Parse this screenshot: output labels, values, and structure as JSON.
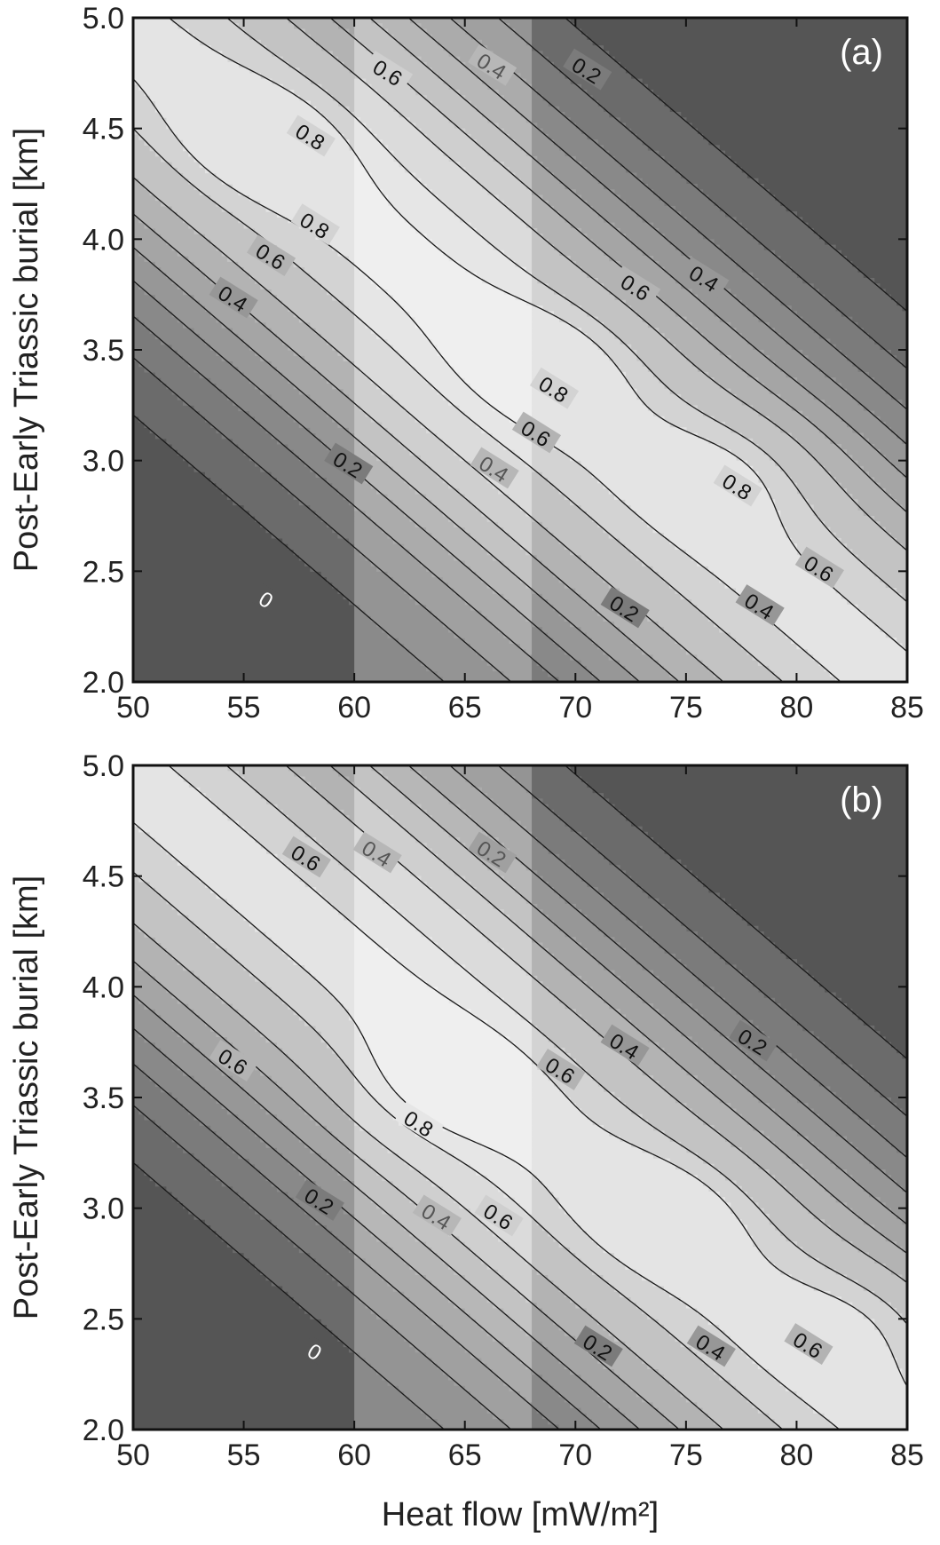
{
  "chart_data": [
    {
      "type": "contour",
      "panel_label": "(a)",
      "xlabel": "",
      "ylabel": "Post-Early Triassic burial [km]",
      "xlim": [
        50,
        85
      ],
      "ylim": [
        2.0,
        5.0
      ],
      "xticks": [
        "50",
        "55",
        "60",
        "65",
        "70",
        "75",
        "80",
        "85"
      ],
      "yticks": [
        "2.0",
        "2.5",
        "3.0",
        "3.5",
        "4.0",
        "4.5",
        "5.0"
      ],
      "highlight_band": [
        60,
        68
      ],
      "peaks": [
        {
          "x": 56,
          "y": 4.45,
          "value": 0.85
        },
        {
          "x": 69,
          "y": 3.45,
          "value": 0.88
        },
        {
          "x": 78,
          "y": 3.0,
          "value": 0.86
        }
      ],
      "contour_labels": [
        {
          "text": "0",
          "x": 56.0,
          "y": 2.37
        },
        {
          "text": "0.2",
          "x": 59.7,
          "y": 2.98
        },
        {
          "text": "0.2",
          "x": 72.2,
          "y": 2.33
        },
        {
          "text": "0.2",
          "x": 70.5,
          "y": 4.76
        },
        {
          "text": "0.4",
          "x": 54.5,
          "y": 3.73
        },
        {
          "text": "0.4",
          "x": 66.3,
          "y": 2.96
        },
        {
          "text": "0.4",
          "x": 78.3,
          "y": 2.34
        },
        {
          "text": "0.4",
          "x": 66.2,
          "y": 4.78
        },
        {
          "text": "0.4",
          "x": 75.8,
          "y": 3.82
        },
        {
          "text": "0.6",
          "x": 56.2,
          "y": 3.92
        },
        {
          "text": "0.6",
          "x": 68.2,
          "y": 3.12
        },
        {
          "text": "0.6",
          "x": 81.0,
          "y": 2.51
        },
        {
          "text": "0.6",
          "x": 61.5,
          "y": 4.75
        },
        {
          "text": "0.6",
          "x": 72.7,
          "y": 3.78
        },
        {
          "text": "0.8",
          "x": 58.2,
          "y": 4.06
        },
        {
          "text": "0.8",
          "x": 58.0,
          "y": 4.46
        },
        {
          "text": "0.8",
          "x": 69.0,
          "y": 3.32
        },
        {
          "text": "0.8",
          "x": 77.3,
          "y": 2.88
        }
      ]
    },
    {
      "type": "contour",
      "panel_label": "(b)",
      "xlabel": "Heat flow [mW/m²]",
      "ylabel": "Post-Early Triassic burial [km]",
      "xlim": [
        50,
        85
      ],
      "ylim": [
        2.0,
        5.0
      ],
      "xticks": [
        "50",
        "55",
        "60",
        "65",
        "70",
        "75",
        "80",
        "85"
      ],
      "yticks": [
        "2.0",
        "2.5",
        "3.0",
        "3.5",
        "4.0",
        "4.5",
        "5.0"
      ],
      "highlight_band": [
        60,
        68
      ],
      "peaks": [
        {
          "x": 63.5,
          "y": 3.52,
          "value": 0.88
        },
        {
          "x": 74.5,
          "y": 3.0,
          "value": 0.86
        },
        {
          "x": 84.0,
          "y": 2.55,
          "value": 0.85
        }
      ],
      "contour_labels": [
        {
          "text": "0",
          "x": 58.2,
          "y": 2.35
        },
        {
          "text": "0.2",
          "x": 58.4,
          "y": 3.03
        },
        {
          "text": "0.2",
          "x": 71.0,
          "y": 2.37
        },
        {
          "text": "0.2",
          "x": 66.2,
          "y": 4.6
        },
        {
          "text": "0.2",
          "x": 78.0,
          "y": 3.75
        },
        {
          "text": "0.4",
          "x": 63.7,
          "y": 2.96
        },
        {
          "text": "0.4",
          "x": 76.1,
          "y": 2.37
        },
        {
          "text": "0.4",
          "x": 61.0,
          "y": 4.6
        },
        {
          "text": "0.4",
          "x": 72.2,
          "y": 3.73
        },
        {
          "text": "0.6",
          "x": 54.5,
          "y": 3.66
        },
        {
          "text": "0.6",
          "x": 66.5,
          "y": 2.96
        },
        {
          "text": "0.6",
          "x": 80.5,
          "y": 2.38
        },
        {
          "text": "0.6",
          "x": 57.8,
          "y": 4.58
        },
        {
          "text": "0.6",
          "x": 69.3,
          "y": 3.62
        },
        {
          "text": "0.8",
          "x": 62.9,
          "y": 3.38
        }
      ]
    }
  ]
}
